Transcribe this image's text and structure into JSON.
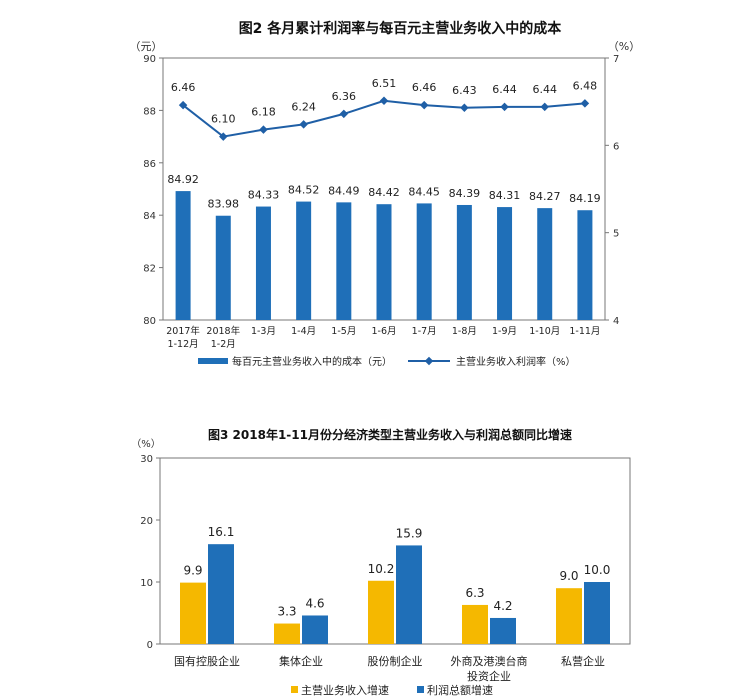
{
  "chart_data": [
    {
      "type": "bar",
      "title": "图2 各月累计利润率与每百元主营业务收入中的成本",
      "categories": [
        "2017年\n1-12月",
        "2018年\n1-2月",
        "1-3月",
        "1-4月",
        "1-5月",
        "1-6月",
        "1-7月",
        "1-8月",
        "1-9月",
        "1-10月",
        "1-11月"
      ],
      "left_unit": "（元）",
      "right_unit": "（%）",
      "ylim_left": [
        80,
        90
      ],
      "yticks_left": [
        "80",
        "82",
        "84",
        "86",
        "88",
        "90"
      ],
      "ylim_right": [
        4,
        7
      ],
      "yticks_right": [
        "4",
        "5",
        "6",
        "7"
      ],
      "series": [
        {
          "name": "每百元主营业务收入中的成本（元）",
          "kind": "bar",
          "axis": "left",
          "values": [
            84.92,
            83.98,
            84.33,
            84.52,
            84.49,
            84.42,
            84.45,
            84.39,
            84.31,
            84.27,
            84.19
          ],
          "labels": [
            "84.92",
            "83.98",
            "84.33",
            "84.52",
            "84.49",
            "84.42",
            "84.45",
            "84.39",
            "84.31",
            "84.27",
            "84.19"
          ],
          "color": "#1f6fb8"
        },
        {
          "name": "主营业务收入利润率（%）",
          "kind": "line",
          "axis": "right",
          "values": [
            6.46,
            6.1,
            6.18,
            6.24,
            6.36,
            6.51,
            6.46,
            6.43,
            6.44,
            6.44,
            6.48
          ],
          "labels": [
            "6.46",
            "6.10",
            "6.18",
            "6.24",
            "6.36",
            "6.51",
            "6.46",
            "6.43",
            "6.44",
            "6.44",
            "6.48"
          ],
          "color": "#1f5fa6"
        }
      ],
      "legend_placement": "bottom",
      "grid": false
    },
    {
      "type": "bar",
      "title": "图3 2018年1-11月份分经济类型主营业务收入与利润总额同比增速",
      "categories": [
        "国有控股企业",
        "集体企业",
        "股份制企业",
        "外商及港澳台商\n投资企业",
        "私营企业"
      ],
      "left_unit": "（%）",
      "ylim": [
        0,
        30
      ],
      "yticks": [
        "0",
        "10",
        "20",
        "30"
      ],
      "series": [
        {
          "name": "主营业务收入增速",
          "values": [
            9.9,
            3.3,
            10.2,
            6.3,
            9.0
          ],
          "labels": [
            "9.9",
            "3.3",
            "10.2",
            "6.3",
            "9.0"
          ],
          "color": "#f5b800"
        },
        {
          "name": "利润总额增速",
          "values": [
            16.1,
            4.6,
            15.9,
            4.2,
            10.0
          ],
          "labels": [
            "16.1",
            "4.6",
            "15.9",
            "4.2",
            "10.0"
          ],
          "color": "#1f6fb8"
        }
      ],
      "legend_placement": "bottom",
      "grid": false
    }
  ]
}
